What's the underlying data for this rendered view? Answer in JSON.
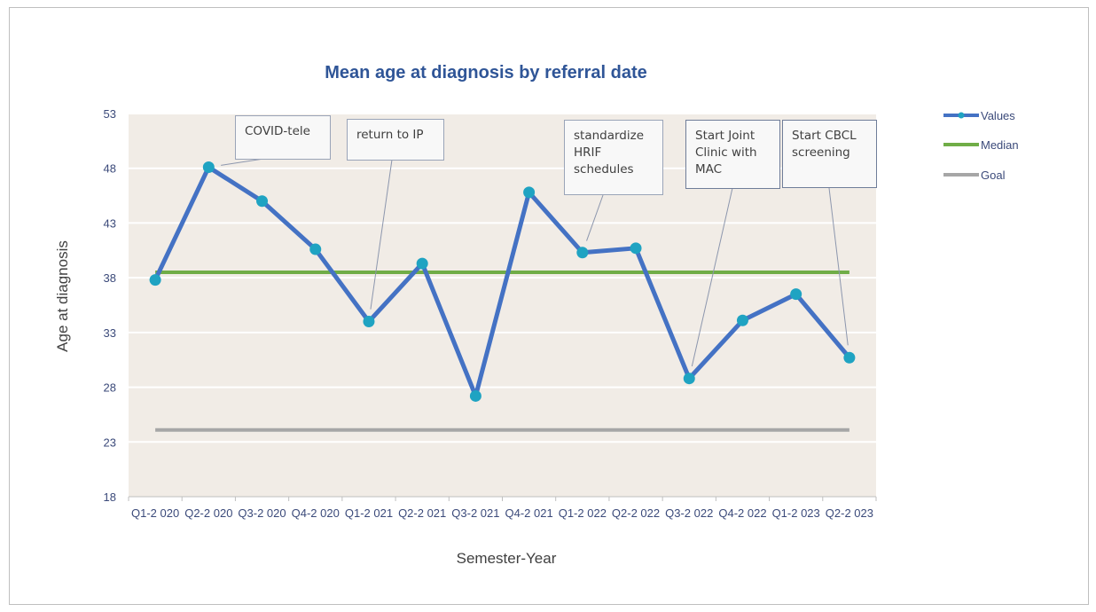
{
  "chart_data": {
    "type": "line",
    "title": "Mean age at diagnosis by referral date",
    "xlabel": "Semester-Year",
    "ylabel": "Age at diagnosis",
    "ylim": [
      18,
      53
    ],
    "yticks": [
      18,
      23,
      28,
      33,
      38,
      43,
      48,
      53
    ],
    "grid": true,
    "legend_position": "right",
    "categories": [
      "Q1-2020",
      "Q2-2020",
      "Q3-2020",
      "Q4-2020",
      "Q1-2021",
      "Q2-2021",
      "Q3-2021",
      "Q4-2021",
      "Q1-2022",
      "Q2-2022",
      "Q3-2022",
      "Q4-2022",
      "Q1-2023",
      "Q2-2023"
    ],
    "category_labels": [
      "Q1-2 020",
      "Q2-2 020",
      "Q3-2 020",
      "Q4-2 020",
      "Q1-2 021",
      "Q2-2 021",
      "Q3-2 021",
      "Q4-2 021",
      "Q1-2 022",
      "Q2-2 022",
      "Q3-2 022",
      "Q4-2 022",
      "Q1-2 023",
      "Q2-2 023"
    ],
    "series": [
      {
        "name": "Values",
        "color": "#4472c4",
        "marker_color": "#1fa3c2",
        "values": [
          37.8,
          48.1,
          45.0,
          40.6,
          34.0,
          39.3,
          27.2,
          45.8,
          40.3,
          40.7,
          28.8,
          34.1,
          36.5,
          30.7
        ]
      },
      {
        "name": "Median",
        "color": "#70ad47",
        "values": [
          38.5,
          38.5,
          38.5,
          38.5,
          38.5,
          38.5,
          38.5,
          38.5,
          38.5,
          38.5,
          38.5,
          38.5,
          38.5,
          38.5
        ]
      },
      {
        "name": "Goal",
        "color": "#a6a6a6",
        "values": [
          24.1,
          24.1,
          24.1,
          24.1,
          24.1,
          24.1,
          24.1,
          24.1,
          24.1,
          24.1,
          24.1,
          24.1,
          24.1,
          24.1
        ]
      }
    ],
    "annotations": [
      {
        "text": "COVID-tele",
        "target_index": 1
      },
      {
        "text": "return to IP",
        "target_index": 4
      },
      {
        "text": "standardize HRIF schedules",
        "target_index": 8
      },
      {
        "text": "Start  Joint Clinic  with MAC",
        "target_index": 10
      },
      {
        "text": "Start CBCL screening",
        "target_index": 13
      }
    ]
  }
}
